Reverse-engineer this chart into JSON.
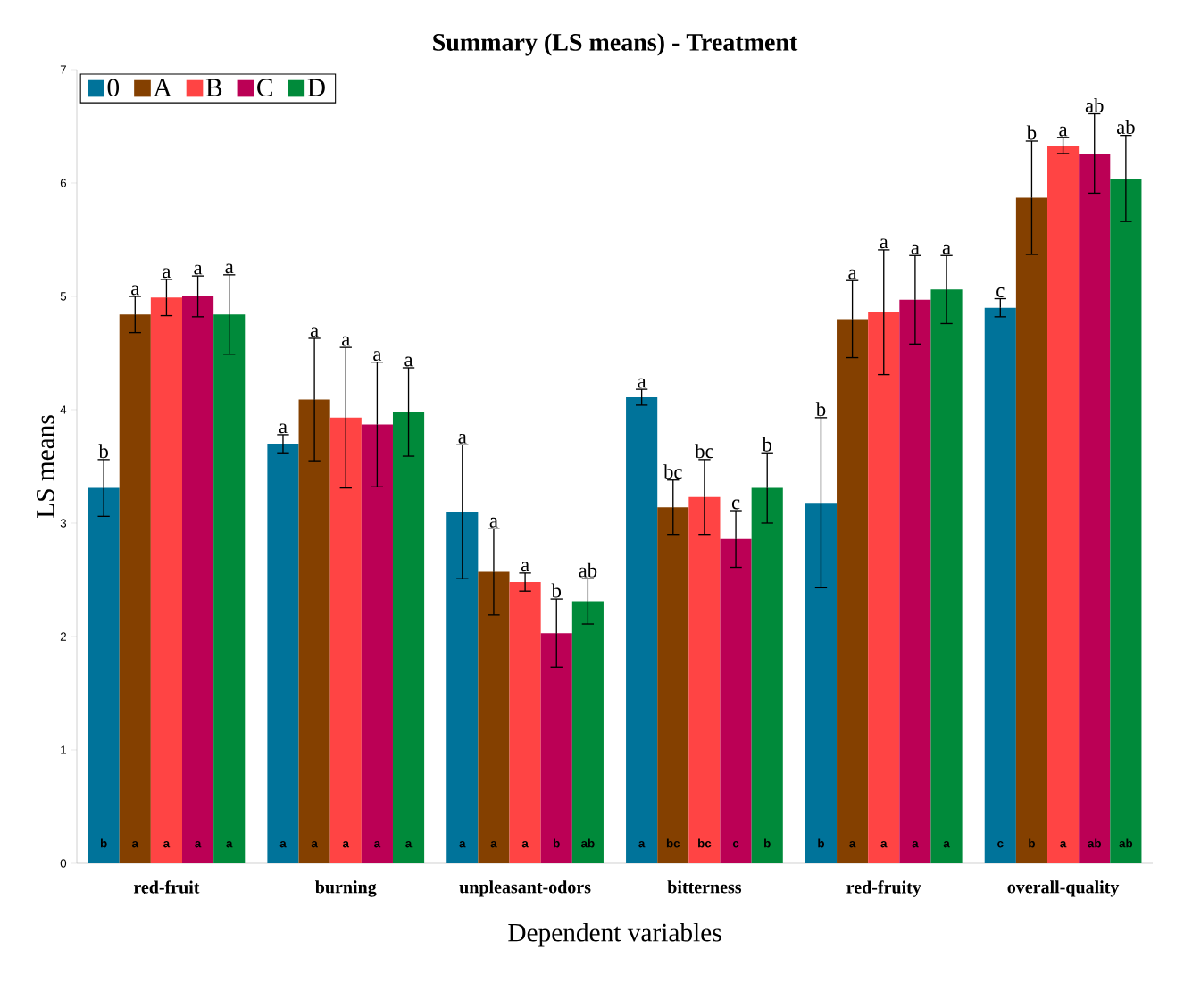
{
  "chart_data": {
    "type": "bar",
    "title": "Summary (LS means) - Treatment",
    "xlabel": "Dependent variables",
    "ylabel": "LS means",
    "categories": [
      "red-fruit",
      "burning",
      "unpleasant-odors",
      "bitterness",
      "red-fruity",
      "overall-quality"
    ],
    "ylim": [
      0,
      7
    ],
    "yticks": [
      0,
      1,
      2,
      3,
      4,
      5,
      6,
      7
    ],
    "grid": false,
    "legend": "top left",
    "series": [
      {
        "name": "0",
        "color": "#00739a",
        "values": [
          3.31,
          3.7,
          3.1,
          4.11,
          3.18,
          4.9
        ],
        "errors": [
          0.25,
          0.08,
          0.59,
          0.07,
          0.75,
          0.08
        ],
        "value_labels": [
          "b",
          "a",
          "a",
          "a",
          "b",
          "c"
        ]
      },
      {
        "name": "A",
        "color": "#844000",
        "values": [
          4.84,
          4.09,
          2.57,
          3.14,
          4.8,
          5.87
        ],
        "errors": [
          0.16,
          0.54,
          0.38,
          0.24,
          0.34,
          0.5
        ],
        "value_labels": [
          "a",
          "a",
          "a",
          "bc",
          "a",
          "b"
        ]
      },
      {
        "name": "B",
        "color": "#ff4444",
        "values": [
          4.99,
          3.93,
          2.48,
          3.23,
          4.86,
          6.33
        ],
        "errors": [
          0.16,
          0.62,
          0.08,
          0.33,
          0.55,
          0.07
        ],
        "value_labels": [
          "a",
          "a",
          "a",
          "bc",
          "a",
          "a"
        ]
      },
      {
        "name": "C",
        "color": "#bb0055",
        "values": [
          5.0,
          3.87,
          2.03,
          2.86,
          4.97,
          6.26
        ],
        "errors": [
          0.18,
          0.55,
          0.3,
          0.25,
          0.39,
          0.35
        ],
        "value_labels": [
          "a",
          "a",
          "b",
          "c",
          "a",
          "ab"
        ]
      },
      {
        "name": "D",
        "color": "#008a3a",
        "values": [
          4.84,
          3.98,
          2.31,
          3.31,
          5.06,
          6.04
        ],
        "errors": [
          0.35,
          0.39,
          0.2,
          0.31,
          0.3,
          0.38
        ],
        "value_labels": [
          "a",
          "a",
          "ab",
          "b",
          "a",
          "ab"
        ]
      }
    ]
  }
}
